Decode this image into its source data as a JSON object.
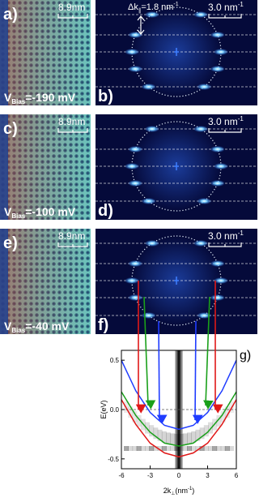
{
  "panels": [
    {
      "real_space": {
        "label": "a)",
        "scale": "8.9nm",
        "bias": {
          "symbol": "V",
          "subscript": "Bias",
          "value": "=-190 mV"
        }
      },
      "fourier": {
        "label": "b)",
        "scale": {
          "text": "3.0 nm",
          "superscript": "-1"
        },
        "spacing": {
          "text": "Δk",
          "subscript": "∥",
          "value": "=1.8 nm",
          "superscript": "-1"
        }
      }
    },
    {
      "real_space": {
        "label": "c)",
        "scale": "8.9nm",
        "bias": {
          "symbol": "V",
          "subscript": "Bias",
          "value": "=-100 mV"
        }
      },
      "fourier": {
        "label": "d)",
        "scale": {
          "text": "3.0 nm",
          "superscript": "-1"
        }
      }
    },
    {
      "real_space": {
        "label": "e)",
        "scale": "8.9nm",
        "bias": {
          "symbol": "V",
          "subscript": "Bias",
          "value": "=-40 mV"
        }
      },
      "fourier": {
        "label": "f)",
        "scale": {
          "text": "3.0 nm",
          "superscript": "-1"
        }
      }
    }
  ],
  "chart_data": {
    "type": "line",
    "label": "g)",
    "ylabel": "E(eV)",
    "xlabel": {
      "text": "2k",
      "subscript": "⊥",
      "unit": "(nm",
      "superscript": "-1",
      "close": ")"
    },
    "x": [
      -6,
      -4.5,
      -3,
      -1.5,
      0,
      1.5,
      3,
      4.5,
      6
    ],
    "series": [
      {
        "color": "#1f3cff",
        "values": [
          0.5,
          0.19,
          -0.03,
          -0.16,
          -0.2,
          -0.16,
          -0.03,
          0.19,
          0.5
        ]
      },
      {
        "color": "#1aa01a",
        "values": [
          0.18,
          -0.06,
          -0.23,
          -0.34,
          -0.37,
          -0.34,
          -0.23,
          -0.06,
          0.18
        ]
      },
      {
        "color": "#e01818",
        "values": [
          0.1,
          -0.15,
          -0.34,
          -0.44,
          -0.48,
          -0.44,
          -0.34,
          -0.15,
          0.1
        ]
      }
    ],
    "xlim": [
      -6,
      6
    ],
    "ylim": [
      -0.6,
      0.6
    ],
    "xticks": [
      -6,
      -3,
      0,
      3,
      6
    ],
    "yticks": [
      0.5,
      {
        "value": 0,
        "label": "0.0"
      },
      -0.5
    ]
  }
}
